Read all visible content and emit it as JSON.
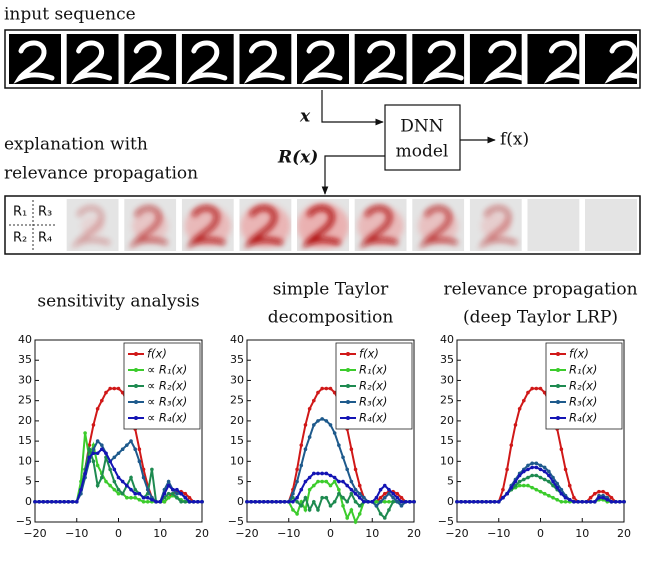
{
  "diagram": {
    "input_label": "input sequence",
    "x_label": "x",
    "model_label": [
      "DNN",
      "model"
    ],
    "output_label": "f(x)",
    "explanation_label": [
      "explanation with",
      "relevance propagation"
    ],
    "relevance_label": "R(x)",
    "quadrant_labels": [
      "R₁",
      "R₃",
      "R₂",
      "R₄"
    ]
  },
  "chart_data": [
    {
      "type": "line",
      "title": [
        "sensitivity analysis"
      ],
      "x": [
        -20,
        -19,
        -18,
        -17,
        -16,
        -15,
        -14,
        -13,
        -12,
        -11,
        -10,
        -9,
        -8,
        -7,
        -6,
        -5,
        -4,
        -3,
        -2,
        -1,
        0,
        1,
        2,
        3,
        4,
        5,
        6,
        7,
        8,
        9,
        10,
        11,
        12,
        13,
        14,
        15,
        16,
        17,
        18,
        19,
        20
      ],
      "xlim": [
        -20,
        20
      ],
      "ylim": [
        -5,
        40
      ],
      "xticks": [
        {
          "value": -20,
          "label": "−20"
        },
        {
          "value": -10,
          "label": "−10"
        },
        0,
        10,
        20
      ],
      "yticks": [
        {
          "value": -5,
          "label": "−5"
        },
        0,
        5,
        10,
        15,
        20,
        25,
        30,
        35,
        40
      ],
      "legend": "upper right",
      "series": [
        {
          "name": "f(x)",
          "color": "#d01818",
          "values": [
            0,
            0,
            0,
            0,
            0,
            0,
            0,
            0,
            0,
            0,
            0,
            3,
            8,
            14,
            19,
            23,
            25,
            27,
            28,
            28,
            28,
            27,
            25,
            22,
            18,
            13,
            8,
            4,
            1,
            0,
            0,
            0,
            1,
            2,
            2.5,
            2.5,
            2,
            1,
            0,
            0,
            0
          ]
        },
        {
          "name": "∝ R₁(x)",
          "color": "#3ccc2c",
          "values": [
            0,
            0,
            0,
            0,
            0,
            0,
            0,
            0,
            0,
            0,
            0,
            5,
            17,
            11,
            14,
            9,
            7,
            5,
            4,
            3,
            2,
            2,
            1,
            1,
            1,
            0.5,
            0,
            0,
            0,
            0,
            0,
            0,
            1,
            1.5,
            1,
            0.5,
            0,
            0,
            0,
            0,
            0
          ]
        },
        {
          "name": "∝ R₂(x)",
          "color": "#1e8a50",
          "values": [
            0,
            0,
            0,
            0,
            0,
            0,
            0,
            0,
            0,
            0,
            0,
            3,
            8,
            13,
            10,
            4,
            6,
            11,
            8,
            5,
            3,
            2,
            4,
            6,
            3,
            2,
            1,
            2,
            8,
            0,
            0,
            1,
            2,
            2,
            1,
            0,
            0,
            0,
            0,
            0,
            0
          ]
        },
        {
          "name": "∝ R₃(x)",
          "color": "#1e5a8c",
          "values": [
            0,
            0,
            0,
            0,
            0,
            0,
            0,
            0,
            0,
            0,
            0,
            2,
            6,
            10,
            13,
            15,
            14,
            12,
            10,
            11,
            12,
            13,
            14,
            15,
            13,
            10,
            6,
            3,
            1,
            0,
            0,
            3,
            5,
            3,
            2,
            2,
            1,
            0,
            0,
            0,
            0
          ]
        },
        {
          "name": "∝ R₄(x)",
          "color": "#1414b4",
          "values": [
            0,
            0,
            0,
            0,
            0,
            0,
            0,
            0,
            0,
            0,
            0,
            3,
            7,
            11,
            12,
            12,
            13,
            12,
            10,
            8,
            6,
            5,
            4,
            3,
            2,
            2,
            1,
            1,
            0.5,
            0,
            0,
            2,
            4,
            3,
            3,
            2,
            1,
            0,
            0,
            0,
            0
          ]
        }
      ]
    },
    {
      "type": "line",
      "title": [
        "simple Taylor",
        "decomposition"
      ],
      "x": [
        -20,
        -19,
        -18,
        -17,
        -16,
        -15,
        -14,
        -13,
        -12,
        -11,
        -10,
        -9,
        -8,
        -7,
        -6,
        -5,
        -4,
        -3,
        -2,
        -1,
        0,
        1,
        2,
        3,
        4,
        5,
        6,
        7,
        8,
        9,
        10,
        11,
        12,
        13,
        14,
        15,
        16,
        17,
        18,
        19,
        20
      ],
      "xlim": [
        -20,
        20
      ],
      "ylim": [
        -5,
        40
      ],
      "xticks": [
        {
          "value": -20,
          "label": "−20"
        },
        {
          "value": -10,
          "label": "−10"
        },
        0,
        10,
        20
      ],
      "yticks": [
        {
          "value": -5,
          "label": "−5"
        },
        0,
        5,
        10,
        15,
        20,
        25,
        30,
        35,
        40
      ],
      "legend": "upper right",
      "series": [
        {
          "name": "f(x)",
          "color": "#d01818",
          "values": [
            0,
            0,
            0,
            0,
            0,
            0,
            0,
            0,
            0,
            0,
            0,
            3,
            8,
            14,
            19,
            23,
            25,
            27,
            28,
            28,
            28,
            27,
            25,
            22,
            18,
            13,
            8,
            4,
            1,
            0,
            0,
            0,
            1,
            2,
            2.5,
            2.5,
            2,
            1,
            0,
            0,
            0
          ]
        },
        {
          "name": "R₁(x)",
          "color": "#3ccc2c",
          "values": [
            0,
            0,
            0,
            0,
            0,
            0,
            0,
            0,
            0,
            0,
            0,
            -2,
            -3,
            0,
            -2,
            3,
            4,
            5,
            5,
            5,
            4,
            5,
            3,
            -1,
            -4,
            -2,
            -5,
            -3,
            0,
            0,
            0,
            0,
            0,
            0,
            0,
            0,
            0,
            0,
            0,
            0,
            0
          ]
        },
        {
          "name": "R₂(x)",
          "color": "#1e8a50",
          "values": [
            0,
            0,
            0,
            0,
            0,
            0,
            0,
            0,
            0,
            0,
            0,
            1,
            0,
            -1,
            1,
            -2,
            0,
            -2,
            1,
            1,
            -1,
            0,
            2,
            1,
            0,
            2,
            0,
            -1,
            0,
            0,
            0,
            -1,
            -3,
            -4,
            -2,
            0,
            0,
            0,
            0,
            0,
            0
          ]
        },
        {
          "name": "R₃(x)",
          "color": "#1e5a8c",
          "values": [
            0,
            0,
            0,
            0,
            0,
            0,
            0,
            0,
            0,
            0,
            0,
            2,
            5,
            9,
            13,
            16,
            19,
            20,
            20.5,
            20,
            19,
            17,
            14,
            11,
            8,
            5,
            3,
            2,
            1,
            0,
            0,
            -1,
            0,
            1,
            2,
            1,
            0,
            -1,
            0,
            0,
            0
          ]
        },
        {
          "name": "R₄(x)",
          "color": "#1414b4",
          "values": [
            0,
            0,
            0,
            0,
            0,
            0,
            0,
            0,
            0,
            0,
            0,
            0,
            1,
            3,
            5,
            6,
            7,
            7,
            7,
            7,
            6.5,
            6,
            5,
            5,
            4,
            3,
            2,
            1,
            0,
            0,
            0,
            1,
            3,
            4,
            3,
            2,
            1,
            0,
            0,
            0,
            0
          ]
        }
      ]
    },
    {
      "type": "line",
      "title": [
        "relevance propagation",
        "(deep Taylor LRP)"
      ],
      "x": [
        -20,
        -19,
        -18,
        -17,
        -16,
        -15,
        -14,
        -13,
        -12,
        -11,
        -10,
        -9,
        -8,
        -7,
        -6,
        -5,
        -4,
        -3,
        -2,
        -1,
        0,
        1,
        2,
        3,
        4,
        5,
        6,
        7,
        8,
        9,
        10,
        11,
        12,
        13,
        14,
        15,
        16,
        17,
        18,
        19,
        20
      ],
      "xlim": [
        -20,
        20
      ],
      "ylim": [
        -5,
        40
      ],
      "xticks": [
        {
          "value": -20,
          "label": "−20"
        },
        {
          "value": -10,
          "label": "−10"
        },
        0,
        10,
        20
      ],
      "yticks": [
        {
          "value": -5,
          "label": "−5"
        },
        0,
        5,
        10,
        15,
        20,
        25,
        30,
        35,
        40
      ],
      "legend": "upper right",
      "series": [
        {
          "name": "f(x)",
          "color": "#d01818",
          "values": [
            0,
            0,
            0,
            0,
            0,
            0,
            0,
            0,
            0,
            0,
            0,
            3,
            8,
            14,
            19,
            23,
            25,
            27,
            28,
            28,
            28,
            27,
            25,
            22,
            18,
            13,
            8,
            4,
            1,
            0,
            0,
            0,
            1,
            2,
            2.5,
            2.5,
            2,
            1,
            0,
            0,
            0
          ]
        },
        {
          "name": "R₁(x)",
          "color": "#3ccc2c",
          "values": [
            0,
            0,
            0,
            0,
            0,
            0,
            0,
            0,
            0,
            0,
            0,
            1,
            2,
            3,
            3.5,
            4,
            4,
            4,
            3.5,
            3,
            2.5,
            2,
            1.5,
            1,
            0.5,
            0,
            0,
            0,
            0,
            0,
            0,
            0,
            0,
            0,
            0.5,
            0.5,
            0,
            0,
            0,
            0,
            0
          ]
        },
        {
          "name": "R₂(x)",
          "color": "#1e8a50",
          "values": [
            0,
            0,
            0,
            0,
            0,
            0,
            0,
            0,
            0,
            0,
            0,
            1,
            2,
            3,
            4,
            5,
            5.5,
            6,
            6.5,
            6.5,
            6,
            5.5,
            5,
            4,
            3,
            2,
            1,
            0.5,
            0,
            0,
            0,
            0,
            0,
            0,
            1,
            1,
            0.5,
            0,
            0,
            0,
            0
          ]
        },
        {
          "name": "R₃(x)",
          "color": "#1e5a8c",
          "values": [
            0,
            0,
            0,
            0,
            0,
            0,
            0,
            0,
            0,
            0,
            0,
            1,
            2,
            4,
            5.5,
            7,
            8,
            9,
            9.5,
            9.5,
            9,
            8.5,
            7.5,
            6,
            4.5,
            3,
            1.5,
            0.5,
            0,
            0,
            0,
            0,
            0,
            0,
            1.5,
            1.5,
            1,
            0,
            0,
            0,
            0
          ]
        },
        {
          "name": "R₄(x)",
          "color": "#1414b4",
          "values": [
            0,
            0,
            0,
            0,
            0,
            0,
            0,
            0,
            0,
            0,
            0,
            1,
            2,
            3.5,
            5,
            6.5,
            7.5,
            8,
            8.5,
            8.5,
            8,
            7.5,
            6.5,
            5,
            3.5,
            2,
            1,
            0.5,
            0,
            0,
            0,
            0,
            0,
            0,
            1,
            1,
            0.5,
            0,
            0,
            0,
            0
          ]
        }
      ]
    }
  ]
}
